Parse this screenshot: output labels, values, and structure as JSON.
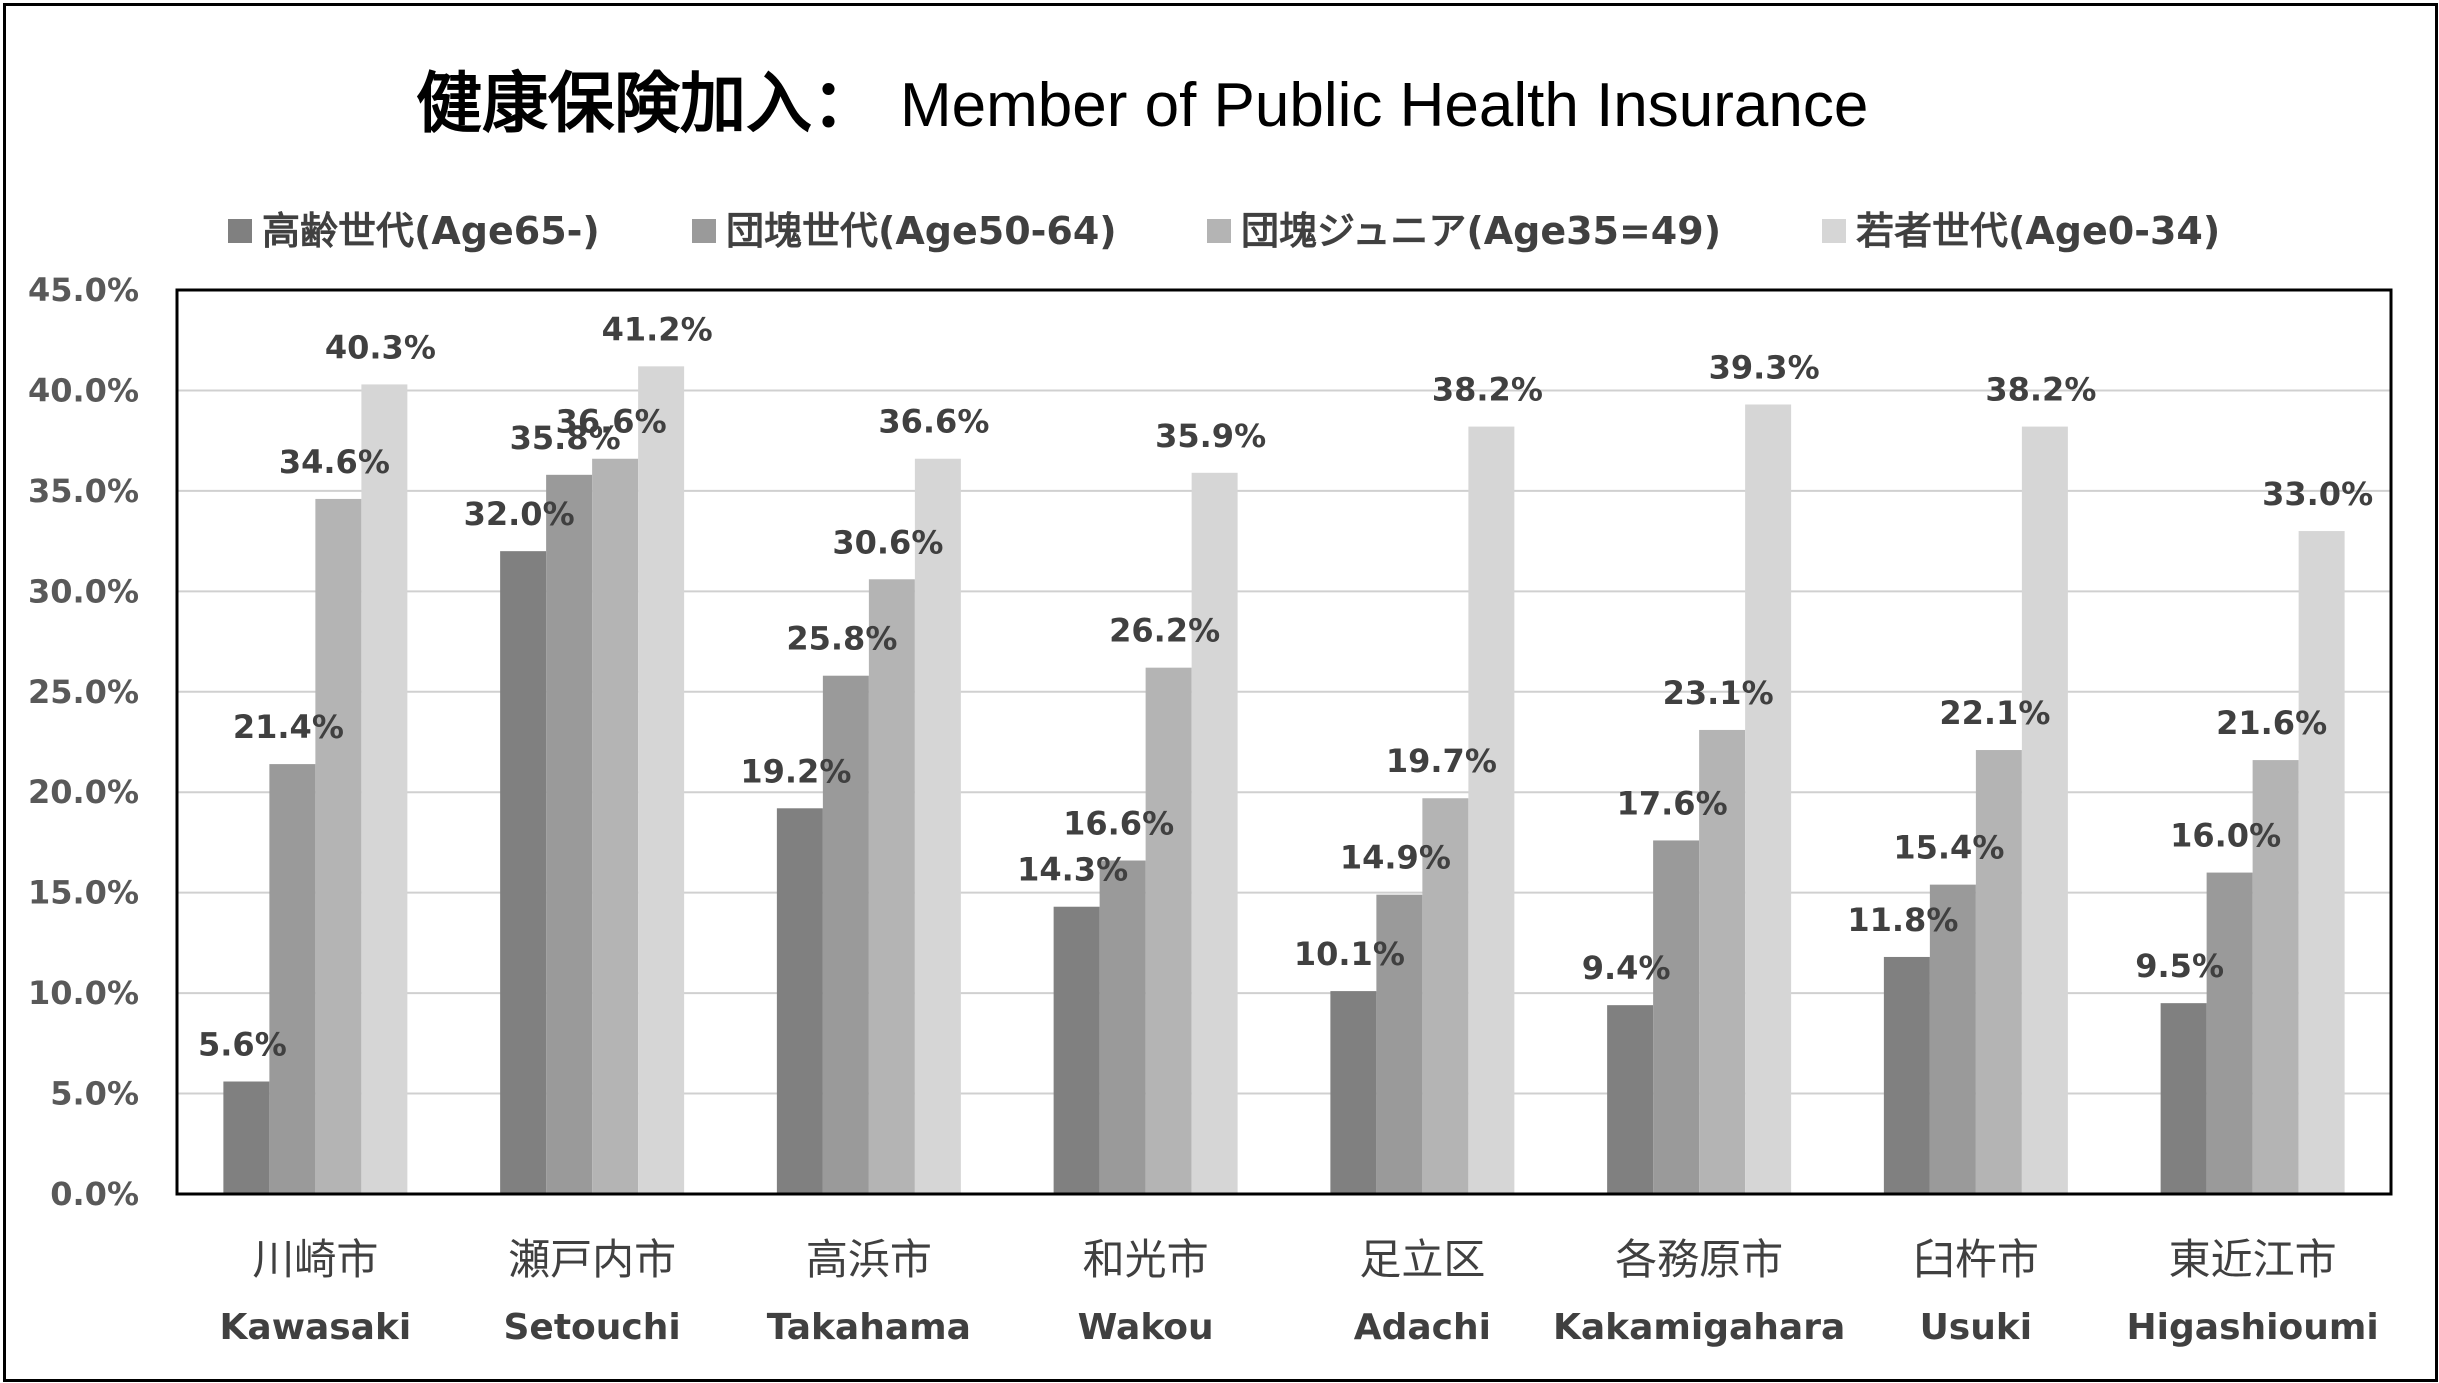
{
  "chart_data": {
    "type": "bar",
    "title": "健康保険加入：",
    "subtitle": "Member of Public Health Insurance",
    "categories": [
      "川崎市",
      "瀬戸内市",
      "高浜市",
      "和光市",
      "足立区",
      "各務原市",
      "臼杵市",
      "東近江市"
    ],
    "categories_en": [
      "Kawasaki",
      "Setouchi",
      "Takahama",
      "Wakou",
      "Adachi",
      "Kakamigahara",
      "Usuki",
      "Higashioumi"
    ],
    "series": [
      {
        "name": "高齢世代(Age65-)",
        "color": "#808080",
        "values": [
          5.6,
          32.0,
          19.2,
          14.3,
          10.1,
          9.4,
          11.8,
          9.5
        ]
      },
      {
        "name": "団塊世代(Age50-64)",
        "color": "#9a9a9a",
        "values": [
          21.4,
          35.8,
          25.8,
          16.6,
          14.9,
          17.6,
          15.4,
          16.0
        ]
      },
      {
        "name": "団塊ジュニア(Age35=49)",
        "color": "#b4b4b4",
        "values": [
          34.6,
          36.6,
          30.6,
          26.2,
          19.7,
          23.1,
          22.1,
          21.6
        ]
      },
      {
        "name": "若者世代(Age0-34)",
        "color": "#d6d6d6",
        "values": [
          40.3,
          41.2,
          36.6,
          35.9,
          38.2,
          39.3,
          38.2,
          33.0
        ]
      }
    ],
    "value_labels": [
      [
        "5.6%",
        "32.0%",
        "19.2%",
        "14.3%",
        "10.1%",
        "9.4%",
        "11.8%",
        "9.5%"
      ],
      [
        "21.4%",
        "35.8%",
        "25.8%",
        "16.6%",
        "14.9%",
        "17.6%",
        "15.4%",
        "16.0%"
      ],
      [
        "34.6%",
        "36.6%",
        "30.6%",
        "26.2%",
        "19.7%",
        "23.1%",
        "22.1%",
        "21.6%"
      ],
      [
        "40.3%",
        "41.2%",
        "36.6%",
        "35.9%",
        "38.2%",
        "39.3%",
        "38.2%",
        "33.0%"
      ]
    ],
    "yticks": [
      "0.0%",
      "5.0%",
      "10.0%",
      "15.0%",
      "20.0%",
      "25.0%",
      "30.0%",
      "35.0%",
      "40.0%",
      "45.0%"
    ],
    "ylim": [
      0,
      45
    ],
    "grid": true,
    "legend_position": "top"
  }
}
